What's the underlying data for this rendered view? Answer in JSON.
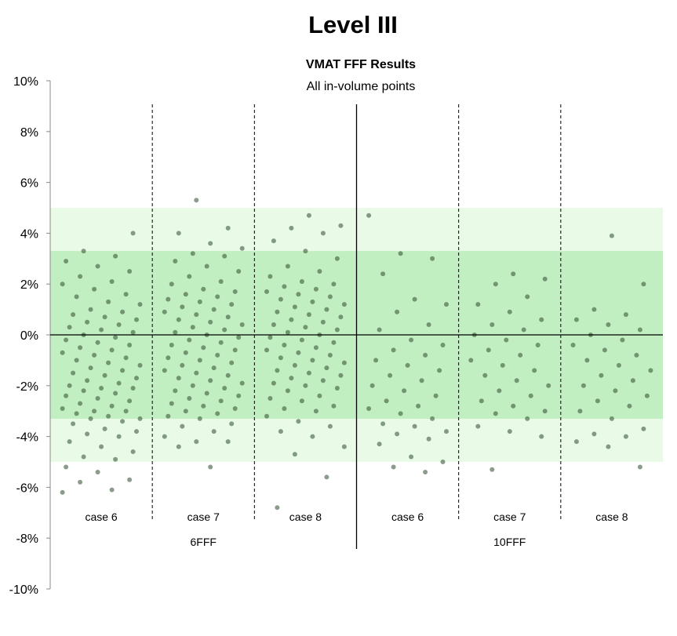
{
  "page_title": "Level III",
  "chart_data": {
    "type": "scatter",
    "title": "VMAT FFF Results",
    "subtitle": "All in-volume points",
    "xlabel": "",
    "ylabel": "",
    "ylim": [
      -10,
      10
    ],
    "y_ticks": [
      -10,
      -8,
      -6,
      -4,
      -2,
      0,
      2,
      4,
      6,
      8,
      10
    ],
    "y_tick_labels": [
      "-10%",
      "-8%",
      "-6%",
      "-4%",
      "-2%",
      "0%",
      "2%",
      "4%",
      "6%",
      "8%",
      "10%"
    ],
    "grid": false,
    "bands": [
      {
        "from": -5,
        "to": 5,
        "color": "#e9fbe6"
      },
      {
        "from": -3.3,
        "to": 3.3,
        "color": "#c2efc2"
      }
    ],
    "point_color": "#2e4a2e",
    "groups": [
      {
        "name": "6FFF",
        "categories": [
          "case 6",
          "case 7",
          "case 8"
        ]
      },
      {
        "name": "10FFF",
        "categories": [
          "case 6",
          "case 7",
          "case 8"
        ]
      }
    ],
    "categories": [
      "case 6",
      "case 7",
      "case 8",
      "case 6",
      "case 7",
      "case 8"
    ],
    "series": [
      {
        "values": [
          -6.2,
          -6.1,
          -5.8,
          -5.7,
          -5.4,
          -5.2,
          -4.9,
          -4.8,
          -4.6,
          -4.4,
          -4.2,
          -4.0,
          -3.9,
          -3.8,
          -3.7,
          -3.5,
          -3.4,
          -3.3,
          -3.3,
          -3.2,
          -3.1,
          -3.0,
          -3.0,
          -2.9,
          -2.8,
          -2.7,
          -2.6,
          -2.5,
          -2.4,
          -2.3,
          -2.2,
          -2.1,
          -2.1,
          -2.0,
          -1.9,
          -1.8,
          -1.7,
          -1.6,
          -1.5,
          -1.4,
          -1.3,
          -1.2,
          -1.1,
          -1.0,
          -0.9,
          -0.8,
          -0.7,
          -0.6,
          -0.5,
          -0.4,
          -0.3,
          -0.2,
          -0.1,
          0.0,
          0.1,
          0.2,
          0.3,
          0.4,
          0.5,
          0.6,
          0.7,
          0.8,
          0.9,
          1.0,
          1.2,
          1.3,
          1.5,
          1.6,
          1.8,
          2.0,
          2.1,
          2.3,
          2.5,
          2.7,
          2.9,
          3.1,
          3.3,
          4.0
        ]
      },
      {
        "values": [
          -5.2,
          -4.4,
          -4.2,
          -4.2,
          -4.0,
          -3.8,
          -3.6,
          -3.5,
          -3.3,
          -3.2,
          -3.1,
          -3.0,
          -2.9,
          -2.8,
          -2.7,
          -2.6,
          -2.5,
          -2.4,
          -2.3,
          -2.2,
          -2.1,
          -2.0,
          -1.9,
          -1.8,
          -1.7,
          -1.6,
          -1.5,
          -1.4,
          -1.3,
          -1.2,
          -1.1,
          -1.0,
          -0.9,
          -0.8,
          -0.7,
          -0.6,
          -0.5,
          -0.4,
          -0.3,
          -0.2,
          -0.1,
          0.0,
          0.1,
          0.2,
          0.3,
          0.4,
          0.5,
          0.6,
          0.7,
          0.8,
          0.9,
          1.0,
          1.1,
          1.2,
          1.3,
          1.4,
          1.5,
          1.6,
          1.7,
          1.8,
          2.0,
          2.1,
          2.3,
          2.5,
          2.7,
          2.9,
          3.1,
          3.2,
          3.4,
          3.6,
          4.0,
          4.2,
          5.3
        ]
      },
      {
        "values": [
          -6.8,
          -5.6,
          -4.7,
          -4.4,
          -4.0,
          -3.8,
          -3.6,
          -3.4,
          -3.2,
          -3.0,
          -2.9,
          -2.8,
          -2.6,
          -2.5,
          -2.4,
          -2.2,
          -2.1,
          -2.0,
          -1.9,
          -1.8,
          -1.7,
          -1.6,
          -1.5,
          -1.4,
          -1.3,
          -1.2,
          -1.1,
          -1.0,
          -0.9,
          -0.8,
          -0.7,
          -0.6,
          -0.5,
          -0.4,
          -0.3,
          -0.2,
          -0.1,
          0.0,
          0.1,
          0.2,
          0.3,
          0.4,
          0.5,
          0.6,
          0.7,
          0.8,
          0.9,
          1.0,
          1.1,
          1.2,
          1.3,
          1.4,
          1.5,
          1.6,
          1.7,
          1.8,
          1.9,
          2.0,
          2.1,
          2.3,
          2.5,
          2.7,
          3.0,
          3.3,
          3.7,
          4.0,
          4.2,
          4.3,
          4.7
        ]
      },
      {
        "values": [
          -5.4,
          -5.2,
          -5.0,
          -4.8,
          -4.3,
          -4.1,
          -3.9,
          -3.8,
          -3.6,
          -3.5,
          -3.3,
          -3.1,
          -2.9,
          -2.8,
          -2.6,
          -2.4,
          -2.2,
          -2.0,
          -1.8,
          -1.6,
          -1.4,
          -1.2,
          -1.0,
          -0.8,
          -0.6,
          -0.4,
          -0.2,
          0.2,
          0.4,
          0.9,
          1.2,
          1.4,
          2.4,
          3.0,
          3.2,
          4.7
        ]
      },
      {
        "values": [
          -5.3,
          -4.0,
          -3.8,
          -3.6,
          -3.3,
          -3.1,
          -3.0,
          -2.8,
          -2.6,
          -2.4,
          -2.2,
          -2.0,
          -1.8,
          -1.6,
          -1.4,
          -1.2,
          -1.0,
          -0.8,
          -0.6,
          -0.4,
          -0.2,
          0.0,
          0.2,
          0.4,
          0.6,
          0.9,
          1.2,
          1.5,
          2.0,
          2.2,
          2.4
        ]
      },
      {
        "values": [
          -5.2,
          -4.4,
          -4.2,
          -4.0,
          -3.9,
          -3.7,
          -3.3,
          -3.0,
          -2.8,
          -2.6,
          -2.4,
          -2.2,
          -2.0,
          -1.8,
          -1.6,
          -1.4,
          -1.2,
          -1.0,
          -0.8,
          -0.6,
          -0.4,
          -0.2,
          0.0,
          0.2,
          0.4,
          0.6,
          0.8,
          1.0,
          2.0,
          3.9
        ]
      }
    ]
  }
}
